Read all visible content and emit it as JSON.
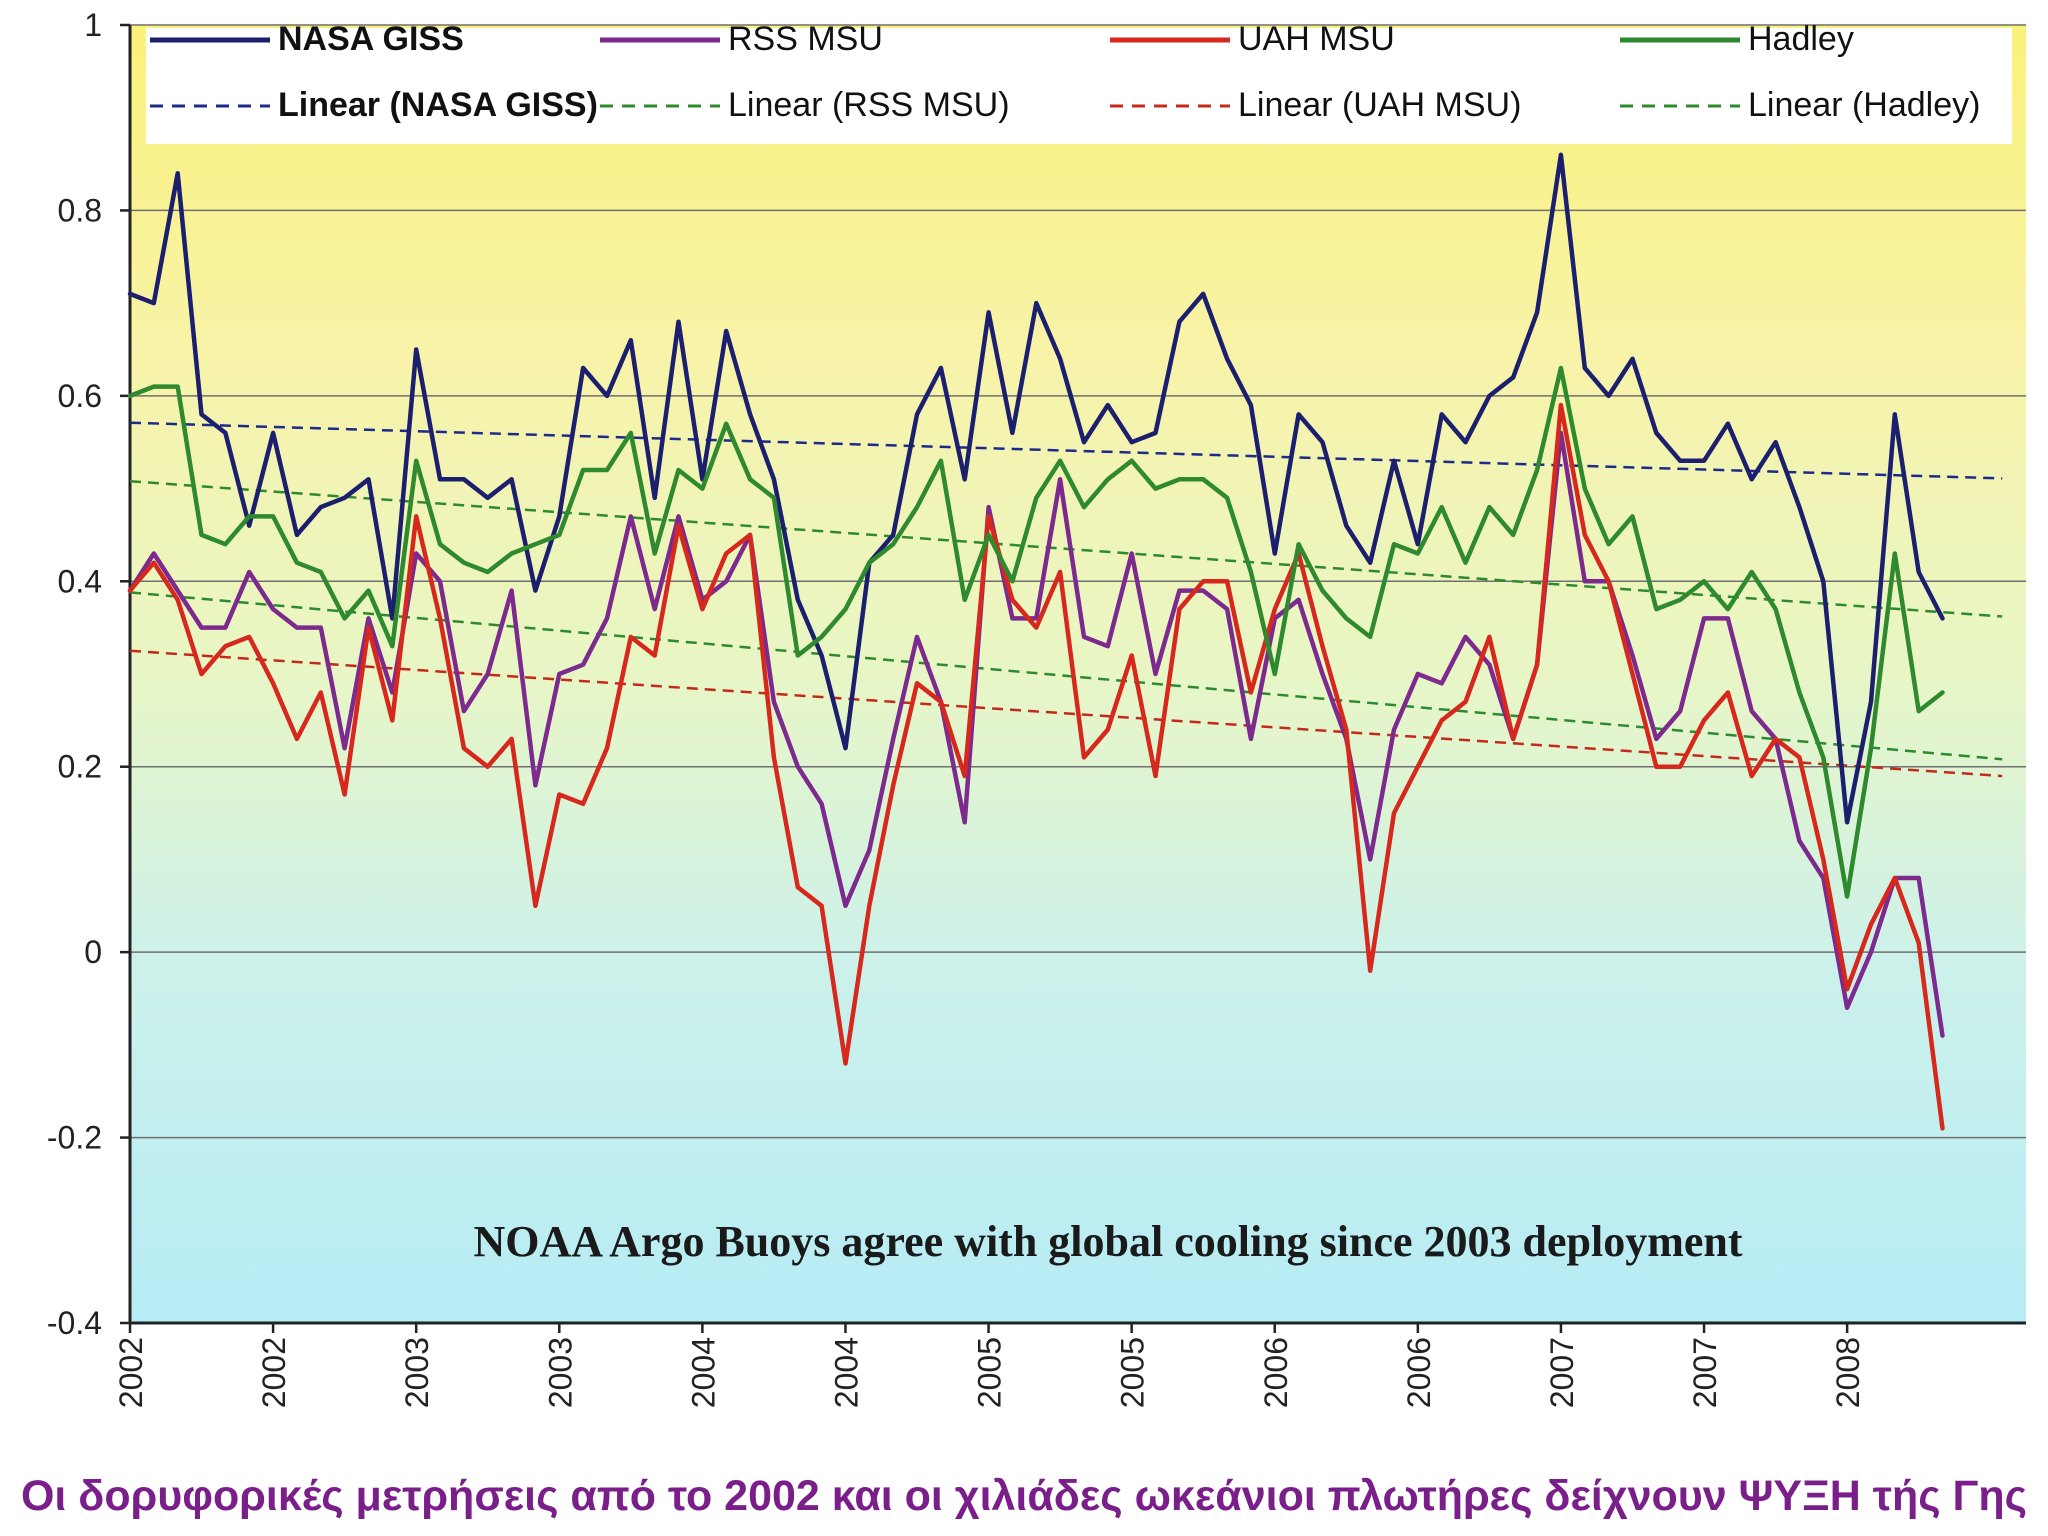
{
  "caption": "Οι δορυφορικές μετρήσεις από το 2002 και οι χιλιάδες ωκεάνιοι πλωτήρες δείχνουν ΨΥΞΗ τής Γης",
  "chart_data": {
    "type": "line",
    "title": "",
    "annotation": "NOAA Argo Buoys agree with global cooling since 2003 deployment",
    "xlabel": "",
    "ylabel": "",
    "ylim": [
      -0.4,
      1
    ],
    "yticks": [
      -0.4,
      -0.2,
      0,
      0.2,
      0.4,
      0.6,
      0.8,
      1
    ],
    "ytick_labels": [
      "-0.4",
      "-0.2",
      "0",
      "0.2",
      "0.4",
      "0.6",
      "0.8",
      "1"
    ],
    "xticks": [
      0,
      6,
      12,
      18,
      24,
      30,
      36,
      42,
      48,
      54,
      60,
      66,
      72
    ],
    "xtick_labels": [
      "2002",
      "2002",
      "2003",
      "2003",
      "2004",
      "2004",
      "2005",
      "2005",
      "2006",
      "2006",
      "2007",
      "2007",
      "2008"
    ],
    "xlim": [
      0,
      79.5
    ],
    "grid": "horizontal",
    "legend_position": "top",
    "series": [
      {
        "name": "NASA GISS",
        "color": "#1c1f6e",
        "style": "solid",
        "bold_label": true,
        "values": [
          0.71,
          0.7,
          0.84,
          0.58,
          0.56,
          0.46,
          0.56,
          0.45,
          0.48,
          0.49,
          0.51,
          0.36,
          0.65,
          0.51,
          0.51,
          0.49,
          0.51,
          0.39,
          0.47,
          0.63,
          0.6,
          0.66,
          0.49,
          0.68,
          0.51,
          0.67,
          0.58,
          0.51,
          0.38,
          0.32,
          0.22,
          0.42,
          0.45,
          0.58,
          0.63,
          0.51,
          0.69,
          0.56,
          0.7,
          0.64,
          0.55,
          0.59,
          0.55,
          0.56,
          0.68,
          0.71,
          0.64,
          0.59,
          0.43,
          0.58,
          0.55,
          0.46,
          0.42,
          0.53,
          0.44,
          0.58,
          0.55,
          0.6,
          0.62,
          0.69,
          0.86,
          0.63,
          0.6,
          0.64,
          0.56,
          0.53,
          0.53,
          0.57,
          0.51,
          0.55,
          0.48,
          0.4,
          0.14,
          0.27,
          0.58,
          0.41,
          0.36
        ]
      },
      {
        "name": "RSS MSU",
        "color": "#7d2a8f",
        "style": "solid",
        "values": [
          0.39,
          0.43,
          0.39,
          0.35,
          0.35,
          0.41,
          0.37,
          0.35,
          0.35,
          0.22,
          0.36,
          0.28,
          0.43,
          0.4,
          0.26,
          0.3,
          0.39,
          0.18,
          0.3,
          0.31,
          0.36,
          0.47,
          0.37,
          0.47,
          0.38,
          0.4,
          0.45,
          0.27,
          0.2,
          0.16,
          0.05,
          0.11,
          0.23,
          0.34,
          0.27,
          0.14,
          0.48,
          0.36,
          0.36,
          0.51,
          0.34,
          0.33,
          0.43,
          0.3,
          0.39,
          0.39,
          0.37,
          0.23,
          0.36,
          0.38,
          0.3,
          0.23,
          0.1,
          0.24,
          0.3,
          0.29,
          0.34,
          0.31,
          0.23,
          0.31,
          0.56,
          0.4,
          0.4,
          0.32,
          0.23,
          0.26,
          0.36,
          0.36,
          0.26,
          0.23,
          0.12,
          0.08,
          -0.06,
          0.0,
          0.08,
          0.08,
          -0.09
        ]
      },
      {
        "name": "UAH MSU",
        "color": "#d6281c",
        "style": "solid",
        "values": [
          0.39,
          0.42,
          0.38,
          0.3,
          0.33,
          0.34,
          0.29,
          0.23,
          0.28,
          0.17,
          0.35,
          0.25,
          0.47,
          0.36,
          0.22,
          0.2,
          0.23,
          0.05,
          0.17,
          0.16,
          0.22,
          0.34,
          0.32,
          0.46,
          0.37,
          0.43,
          0.45,
          0.21,
          0.07,
          0.05,
          -0.12,
          0.05,
          0.18,
          0.29,
          0.27,
          0.19,
          0.47,
          0.38,
          0.35,
          0.41,
          0.21,
          0.24,
          0.32,
          0.19,
          0.37,
          0.4,
          0.4,
          0.28,
          0.37,
          0.43,
          0.33,
          0.24,
          -0.02,
          0.15,
          0.2,
          0.25,
          0.27,
          0.34,
          0.23,
          0.31,
          0.59,
          0.45,
          0.4,
          0.3,
          0.2,
          0.2,
          0.25,
          0.28,
          0.19,
          0.23,
          0.21,
          0.1,
          -0.04,
          0.03,
          0.08,
          0.01,
          -0.19
        ]
      },
      {
        "name": "Hadley",
        "color": "#2f8a2f",
        "style": "solid",
        "values": [
          0.6,
          0.61,
          0.61,
          0.45,
          0.44,
          0.47,
          0.47,
          0.42,
          0.41,
          0.36,
          0.39,
          0.33,
          0.53,
          0.44,
          0.42,
          0.41,
          0.43,
          0.44,
          0.45,
          0.52,
          0.52,
          0.56,
          0.43,
          0.52,
          0.5,
          0.57,
          0.51,
          0.49,
          0.32,
          0.34,
          0.37,
          0.42,
          0.44,
          0.48,
          0.53,
          0.38,
          0.45,
          0.4,
          0.49,
          0.53,
          0.48,
          0.51,
          0.53,
          0.5,
          0.51,
          0.51,
          0.49,
          0.41,
          0.3,
          0.44,
          0.39,
          0.36,
          0.34,
          0.44,
          0.43,
          0.48,
          0.42,
          0.48,
          0.45,
          0.52,
          0.63,
          0.5,
          0.44,
          0.47,
          0.37,
          0.38,
          0.4,
          0.37,
          0.41,
          0.37,
          0.28,
          0.21,
          0.06,
          0.22,
          0.43,
          0.26,
          0.28
        ]
      },
      {
        "name": "Linear (NASA GISS)",
        "color": "#1c2a8a",
        "style": "dashed",
        "bold_label": true,
        "trend_of": "NASA GISS",
        "x": [
          0,
          78.5
        ],
        "values": [
          0.571,
          0.511
        ]
      },
      {
        "name": "Linear (RSS MSU)",
        "color": "#2f8a2f",
        "style": "dashed",
        "trend_of": "RSS MSU",
        "x": [
          0,
          78.5
        ],
        "values": [
          0.388,
          0.208
        ]
      },
      {
        "name": "Linear (UAH MSU)",
        "color": "#c42a1a",
        "style": "dashed",
        "trend_of": "UAH MSU",
        "x": [
          0,
          78.5
        ],
        "values": [
          0.325,
          0.19
        ]
      },
      {
        "name": "Linear (Hadley)",
        "color": "#2f8a2f",
        "style": "dashed",
        "trend_of": "Hadley",
        "x": [
          0,
          78.5
        ],
        "values": [
          0.508,
          0.362
        ]
      }
    ]
  }
}
